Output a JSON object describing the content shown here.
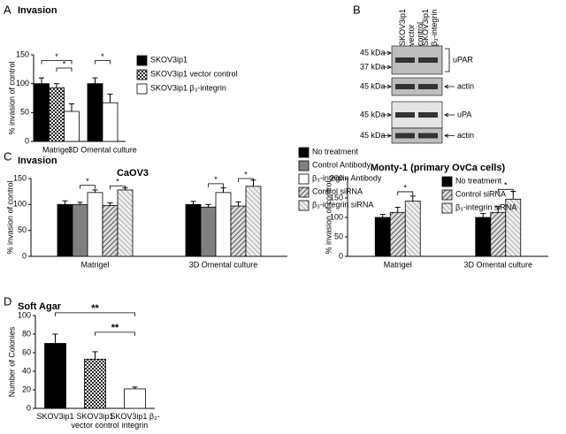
{
  "chart_data": [
    {
      "type": "bar",
      "panel": "A",
      "title": "Invasion",
      "y_label": "% invasion of control",
      "categories": [
        "Matrigel",
        "3D Omental culture"
      ],
      "series": [
        {
          "name": "SKOV3ip1",
          "color": "#000000",
          "pattern": "solid",
          "values": [
            100,
            100
          ],
          "errors": [
            10,
            10
          ]
        },
        {
          "name": "SKOV3ip1 vector control",
          "color": "#444444",
          "pattern": "checker",
          "values": [
            93,
            null
          ],
          "errors": [
            7,
            null
          ]
        },
        {
          "name": "SKOV3ip1 β₃-integrin",
          "color": "#ffffff",
          "pattern": "solid",
          "values": [
            52,
            67
          ],
          "errors": [
            13,
            15
          ]
        }
      ],
      "annotations": [
        "*",
        "*",
        "*"
      ],
      "ylim": [
        0,
        150
      ],
      "yticks": [
        0,
        50,
        100,
        150
      ]
    },
    {
      "type": "bar",
      "panel": "C",
      "title": "Invasion",
      "subtitle": "CaOV3",
      "y_label": "% invasion of control",
      "categories": [
        "Matrigel",
        "3D Omental culture"
      ],
      "series": [
        {
          "name": "No treatment",
          "color": "#000000",
          "pattern": "solid",
          "values": [
            100,
            100
          ],
          "errors": [
            7,
            6
          ]
        },
        {
          "name": "Control Antibody",
          "color": "#808080",
          "pattern": "solid",
          "values": [
            100,
            95
          ],
          "errors": [
            4,
            5
          ]
        },
        {
          "name": "β₃-integrin Antibody",
          "color": "#ffffff",
          "pattern": "solid",
          "values": [
            123,
            123
          ],
          "errors": [
            5,
            9
          ]
        },
        {
          "name": "Control siRNA",
          "color": "#999999",
          "pattern": "hatch",
          "values": [
            98,
            97
          ],
          "errors": [
            5,
            8
          ]
        },
        {
          "name": "β₃-integrin siRNA",
          "color": "#bbbbbb",
          "pattern": "hatch2",
          "values": [
            128,
            135
          ],
          "errors": [
            4,
            12
          ]
        }
      ],
      "annotations": [
        "*",
        "*",
        "*",
        "*"
      ],
      "ylim": [
        0,
        150
      ],
      "yticks": [
        0,
        50,
        100,
        150
      ]
    },
    {
      "type": "bar",
      "subtitle": "Monty-1 (primary OvCa cells)",
      "y_label": "% invasion of control",
      "categories": [
        "Matrigel",
        "3D Omental culture"
      ],
      "series": [
        {
          "name": "No treatment",
          "color": "#000000",
          "pattern": "solid",
          "values": [
            100,
            100
          ],
          "errors": [
            8,
            10
          ]
        },
        {
          "name": "Control siRNA",
          "color": "#999999",
          "pattern": "hatch",
          "values": [
            113,
            113
          ],
          "errors": [
            13,
            15
          ]
        },
        {
          "name": "β₃-integrin siRNA",
          "color": "#bbbbbb",
          "pattern": "hatch2",
          "values": [
            142,
            147
          ],
          "errors": [
            13,
            20
          ]
        }
      ],
      "annotations": [
        "*",
        "*"
      ],
      "ylim": [
        0,
        200
      ],
      "yticks": [
        0,
        50,
        100,
        150,
        200
      ]
    },
    {
      "type": "bar",
      "panel": "D",
      "title": "Soft Agar",
      "y_label": "Number of Colonies",
      "categories": [
        "SKOV3ip1",
        "SKOV3ip1 vector control",
        "SKOV3ip1 β₃-integrin"
      ],
      "values": [
        70,
        53,
        21
      ],
      "errors": [
        10,
        8,
        2
      ],
      "colors": [
        "#000000",
        "#444444",
        "#ffffff"
      ],
      "patterns": [
        "solid",
        "checker",
        "solid"
      ],
      "annotations": [
        "**",
        "**"
      ],
      "ylim": [
        0,
        100
      ],
      "yticks": [
        0,
        20,
        40,
        60,
        80,
        100
      ]
    }
  ],
  "blot": {
    "panel": "B",
    "lanes": [
      "SKOV3ip1 vector control",
      "SKOV3ip1 β₃-integrin"
    ],
    "rows": [
      {
        "markers": [
          "45 kDa",
          "37 kDa"
        ],
        "label": "uPAR"
      },
      {
        "markers": [
          "45 kDa"
        ],
        "label": "actin"
      },
      {
        "markers": [
          "45 kDa"
        ],
        "label": "uPA"
      },
      {
        "markers": [
          "45 kDa"
        ],
        "label": "actin"
      }
    ]
  }
}
